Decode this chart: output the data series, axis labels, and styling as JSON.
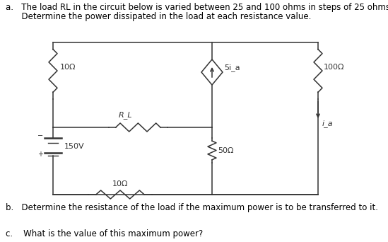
{
  "text_a_line1": "a.   The load RL in the circuit below is varied between 25 and 100 ohms in steps of 25 ohms.",
  "text_a_line2": "      Determine the power dissipated in the load at each resistance value.",
  "text_b": "b.   Determine the resistance of the load if the maximum power is to be transferred to it.",
  "text_c": "c.    What is the value of this maximum power?",
  "bg_color": "#ffffff",
  "line_color": "#333333",
  "font_size_text": 8.5,
  "resistor_10_left_label": "10Ω",
  "resistor_100_label": "100Ω",
  "resistor_RL_label": "R_L",
  "resistor_50_label": "50Ω",
  "resistor_10_bot_label": "10Ω",
  "source_label": "150V",
  "current_source_label": "5i_a",
  "current_label_right": "i_a"
}
